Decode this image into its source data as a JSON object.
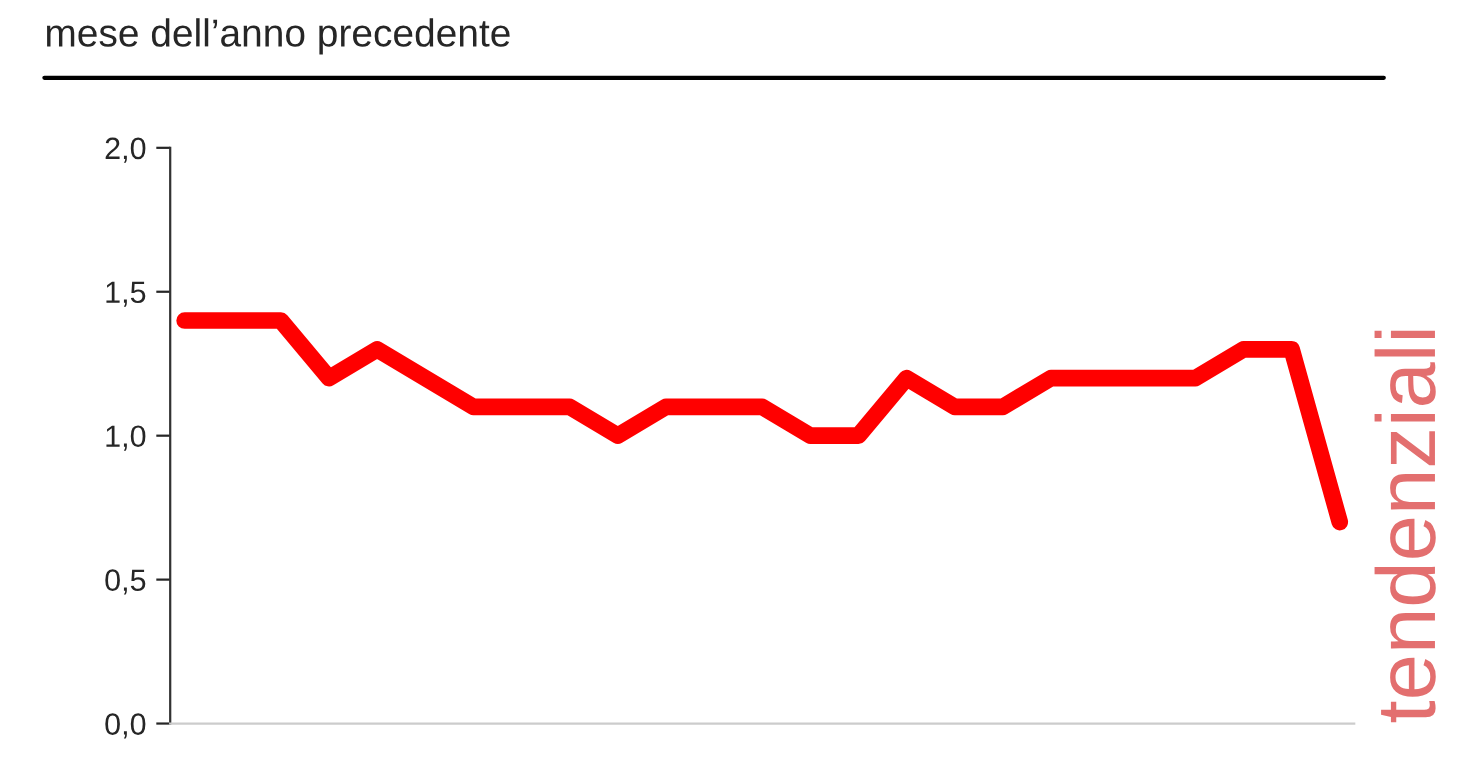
{
  "chart_data": {
    "type": "line",
    "title": "mese dell’anno precedente",
    "categories": [
      null,
      null,
      null,
      null,
      null,
      null,
      null,
      null,
      null,
      null,
      null,
      null,
      null,
      null,
      null,
      null,
      null,
      null,
      null,
      null,
      null,
      null,
      null,
      null,
      null
    ],
    "series": [
      {
        "color": "#ff0000",
        "values": [
          1.4,
          1.4,
          1.4,
          1.2,
          1.3,
          1.2,
          1.1,
          1.1,
          1.1,
          1.0,
          1.1,
          1.1,
          1.1,
          1.0,
          1.0,
          1.2,
          1.1,
          1.1,
          1.2,
          1.2,
          1.2,
          1.2,
          1.3,
          1.3,
          0.7
        ]
      }
    ],
    "ylim": [
      0,
      2
    ],
    "yticks": [
      {
        "value": 0,
        "label": "0,0"
      },
      {
        "value": 0.5,
        "label": "0,5"
      },
      {
        "value": 1,
        "label": "1,0"
      },
      {
        "value": 1.5,
        "label": "1,5"
      },
      {
        "value": 2,
        "label": "2,0"
      }
    ],
    "tick_labels": "y",
    "grid": false,
    "legend": false,
    "marker": "none",
    "line_style": "solid",
    "annotations": [
      "tendenziali"
    ]
  }
}
